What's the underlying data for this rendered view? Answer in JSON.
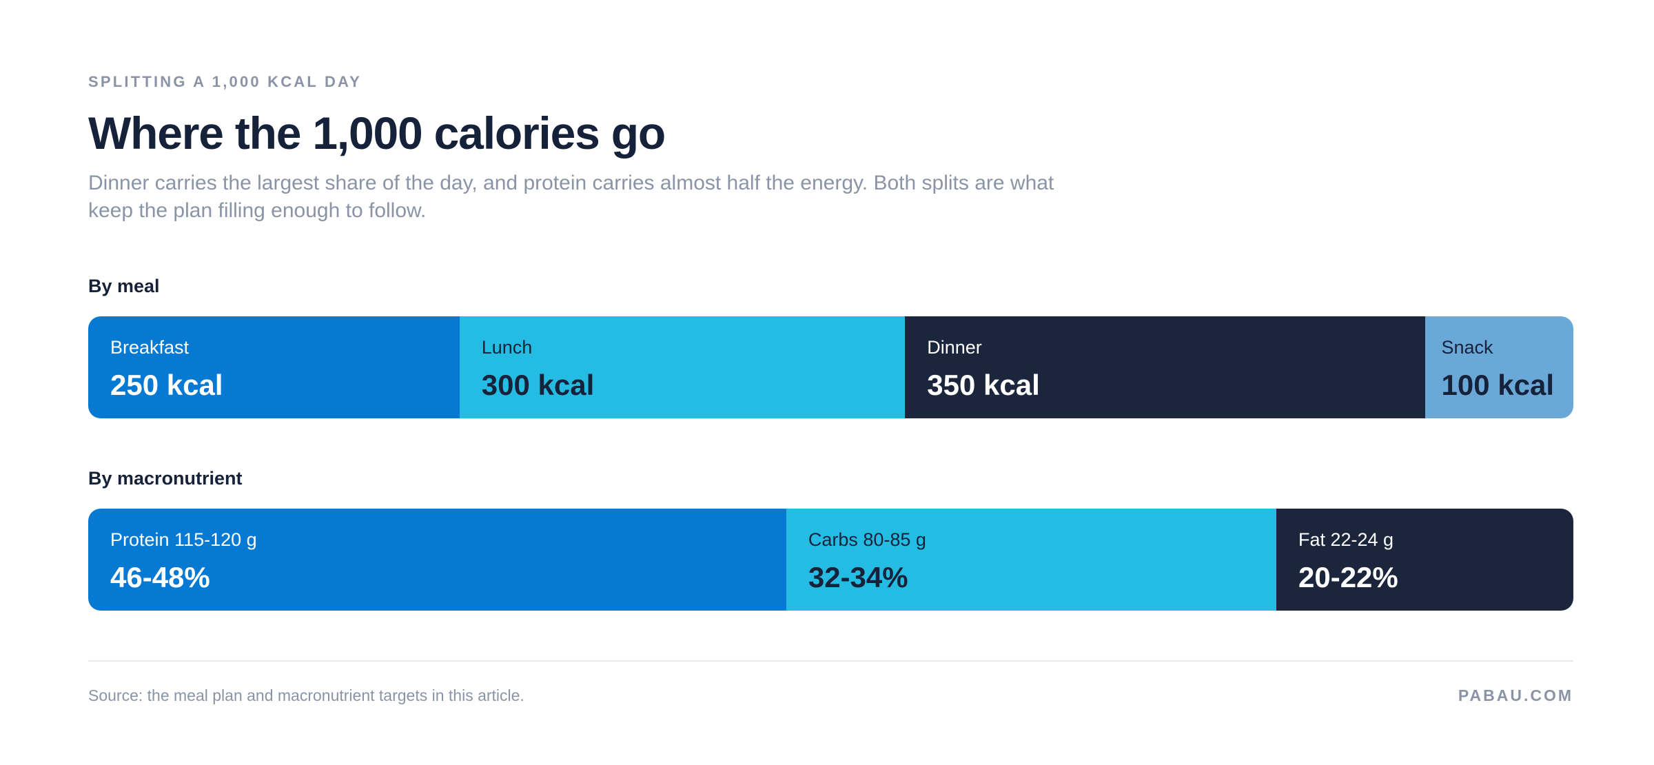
{
  "header": {
    "eyebrow": "SPLITTING A 1,000 KCAL DAY",
    "title": "Where the 1,000 calories go",
    "subtitle": "Dinner carries the largest share of the day, and protein carries almost half the energy. Both splits are what keep the plan filling enough to follow."
  },
  "chart_data": [
    {
      "type": "bar",
      "orientation": "horizontal-stacked",
      "title": "By meal",
      "unit": "kcal",
      "total": 1000,
      "segments": [
        {
          "name": "Breakfast",
          "value": 250,
          "display": "250 kcal",
          "color": "#0679d3",
          "text_color": "#ffffff"
        },
        {
          "name": "Lunch",
          "value": 300,
          "display": "300 kcal",
          "color": "#24bce2",
          "text_color": "#16213a"
        },
        {
          "name": "Dinner",
          "value": 350,
          "display": "350 kcal",
          "color": "#1b253b",
          "text_color": "#ffffff"
        },
        {
          "name": "Snack",
          "value": 100,
          "display": "100 kcal",
          "color": "#6aa8d8",
          "text_color": "#16213a"
        }
      ]
    },
    {
      "type": "bar",
      "orientation": "horizontal-stacked",
      "title": "By macronutrient",
      "unit": "% of energy",
      "total": 100,
      "segments": [
        {
          "name": "Protein 115-120 g",
          "value": 47,
          "display": "46-48%",
          "color": "#0679d3",
          "text_color": "#ffffff"
        },
        {
          "name": "Carbs 80-85 g",
          "value": 33,
          "display": "32-34%",
          "color": "#24bce2",
          "text_color": "#16213a"
        },
        {
          "name": "Fat 22-24 g",
          "value": 20,
          "display": "20-22%",
          "color": "#1b253b",
          "text_color": "#ffffff"
        }
      ]
    }
  ],
  "footer": {
    "source": "Source: the meal plan and macronutrient targets in this article.",
    "brand": "PABAU.COM"
  }
}
